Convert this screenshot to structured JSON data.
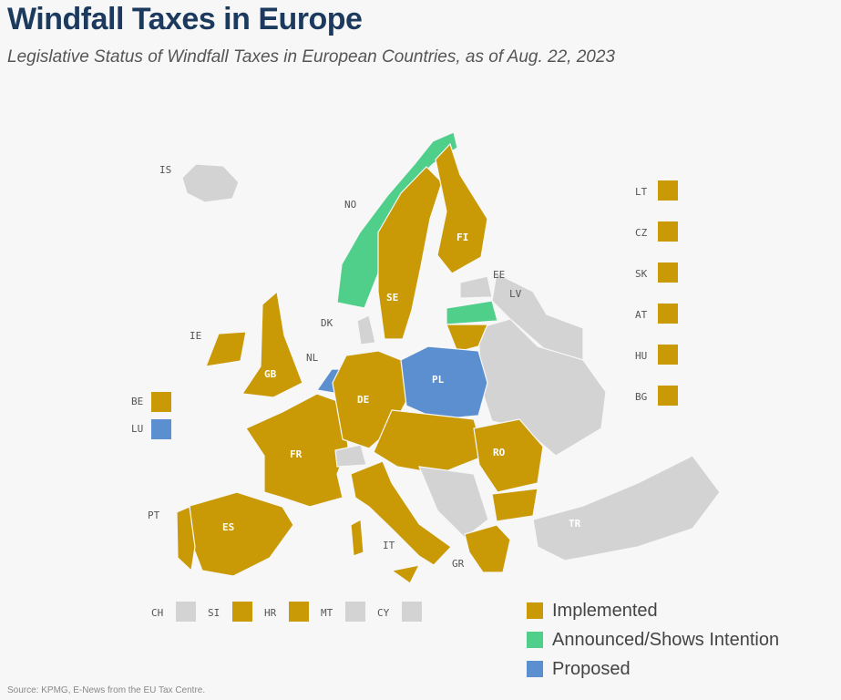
{
  "title": "Windfall Taxes in Europe",
  "subtitle": "Legislative Status of Windfall Taxes in European Countries, as of Aug. 22, 2023",
  "colors": {
    "implemented": "#c99a06",
    "announced": "#4fcf8a",
    "proposed": "#5b8fcf",
    "none": "#d3d3d3",
    "title": "#1c3a5e"
  },
  "map_labels": {
    "IS": "IS",
    "NO": "NO",
    "FI": "FI",
    "SE": "SE",
    "EE": "EE",
    "LV": "LV",
    "DK": "DK",
    "IE": "IE",
    "GB": "GB",
    "NL": "NL",
    "DE": "DE",
    "PL": "PL",
    "FR": "FR",
    "PT": "PT",
    "ES": "ES",
    "IT": "IT",
    "RO": "RO",
    "GR": "GR",
    "TR": "TR"
  },
  "side_boxes": [
    {
      "code": "LT",
      "status": "implemented"
    },
    {
      "code": "CZ",
      "status": "implemented"
    },
    {
      "code": "SK",
      "status": "implemented"
    },
    {
      "code": "AT",
      "status": "implemented"
    },
    {
      "code": "HU",
      "status": "implemented"
    },
    {
      "code": "BG",
      "status": "implemented"
    }
  ],
  "left_boxes": [
    {
      "code": "BE",
      "status": "implemented"
    },
    {
      "code": "LU",
      "status": "proposed"
    }
  ],
  "bottom_boxes": [
    {
      "code": "CH",
      "status": "none"
    },
    {
      "code": "SI",
      "status": "implemented"
    },
    {
      "code": "HR",
      "status": "implemented"
    },
    {
      "code": "MT",
      "status": "none"
    },
    {
      "code": "CY",
      "status": "none"
    }
  ],
  "legend": [
    {
      "label": "Implemented",
      "status": "implemented"
    },
    {
      "label": "Announced/Shows Intention",
      "status": "announced"
    },
    {
      "label": "Proposed",
      "status": "proposed"
    }
  ],
  "source": "Source: KPMG, E-News from the EU Tax Centre."
}
